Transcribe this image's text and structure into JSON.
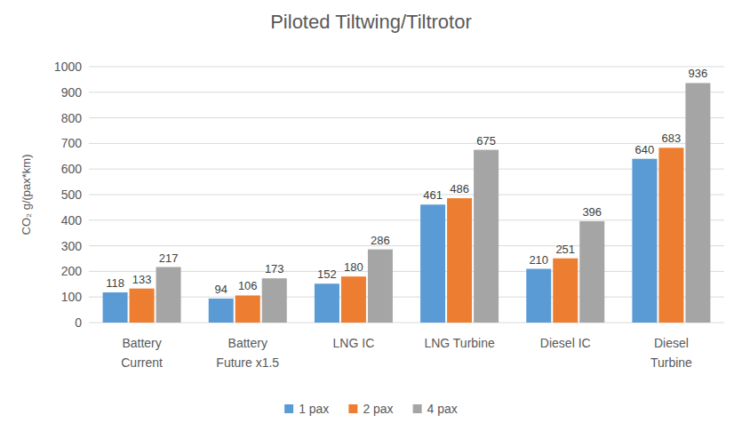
{
  "chart_data": {
    "type": "bar",
    "title": "Piloted Tiltwing/Tiltrotor",
    "y_label": "CO₂ g/(pax*km)",
    "categories": [
      "Battery Current",
      "Battery Future x1.5",
      "LNG IC",
      "LNG Turbine",
      "Diesel IC",
      "Diesel Turbine"
    ],
    "series": [
      {
        "name": "1 pax",
        "color": "#5b9bd5",
        "values": [
          118,
          94,
          152,
          461,
          210,
          640
        ]
      },
      {
        "name": "2 pax",
        "color": "#ed7d31",
        "values": [
          133,
          106,
          180,
          486,
          251,
          683
        ]
      },
      {
        "name": "4 pax",
        "color": "#a5a5a5",
        "values": [
          217,
          173,
          286,
          675,
          396,
          936
        ]
      }
    ],
    "ylim": [
      0,
      1000
    ],
    "yticks": [
      0,
      100,
      200,
      300,
      400,
      500,
      600,
      700,
      800,
      900,
      1000
    ],
    "grid": true,
    "legend": "bottom",
    "data_labels": true
  }
}
